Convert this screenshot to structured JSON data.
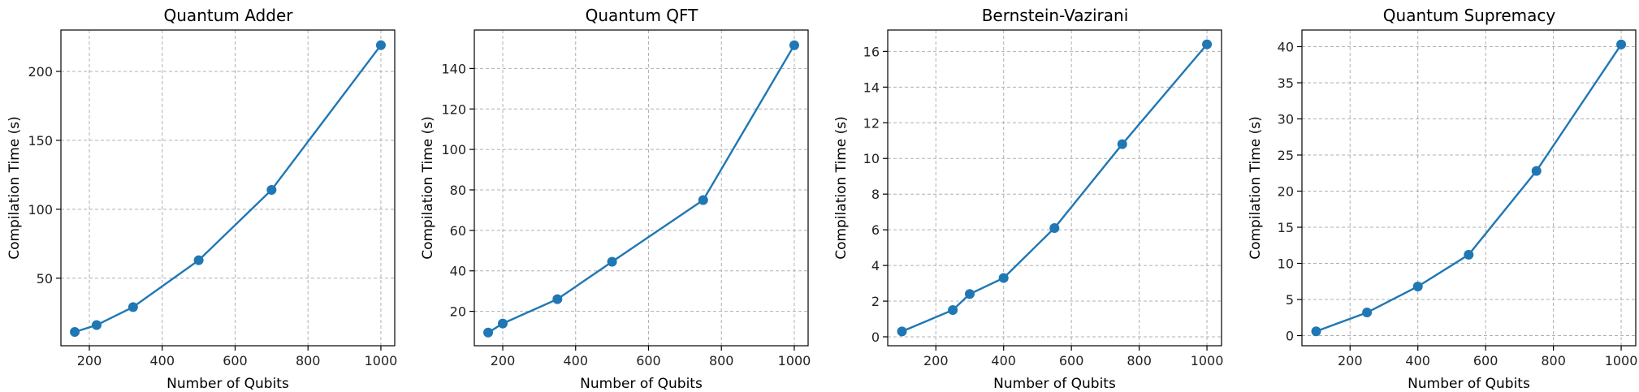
{
  "colors": {
    "series": "#1f77b4"
  },
  "chart_data": [
    {
      "type": "line",
      "title": "Quantum Adder",
      "xlabel": "Number of Qubits",
      "ylabel": "Compilation Time (s)",
      "x": [
        160,
        220,
        320,
        500,
        700,
        1000
      ],
      "series": [
        {
          "values": [
            11,
            16,
            29,
            63,
            114,
            219
          ]
        }
      ],
      "xlim": [
        122,
        1038
      ],
      "ylim": [
        1,
        230
      ],
      "xticks": [
        200,
        400,
        600,
        800,
        1000
      ],
      "yticks": [
        50,
        100,
        150,
        200
      ],
      "grid": true
    },
    {
      "type": "line",
      "title": "Quantum QFT",
      "xlabel": "Number of Qubits",
      "ylabel": "Compilation Time (s)",
      "x": [
        160,
        200,
        350,
        500,
        750,
        1000
      ],
      "series": [
        {
          "values": [
            9.5,
            14,
            26,
            44.5,
            75,
            151.5
          ]
        }
      ],
      "xlim": [
        122,
        1038
      ],
      "ylim": [
        3,
        159
      ],
      "xticks": [
        200,
        400,
        600,
        800,
        1000
      ],
      "yticks": [
        20,
        40,
        60,
        80,
        100,
        120,
        140
      ],
      "grid": true
    },
    {
      "type": "line",
      "title": "Bernstein-Vazirani",
      "xlabel": "Number of Qubits",
      "ylabel": "Compilation Time (s)",
      "x": [
        100,
        250,
        300,
        400,
        550,
        750,
        1000
      ],
      "series": [
        {
          "values": [
            0.3,
            1.5,
            2.4,
            3.3,
            6.1,
            10.8,
            16.4
          ]
        }
      ],
      "xlim": [
        58,
        1043
      ],
      "ylim": [
        -0.5,
        17.2
      ],
      "xticks": [
        200,
        400,
        600,
        800,
        1000
      ],
      "yticks": [
        0,
        2,
        4,
        6,
        8,
        10,
        12,
        14,
        16
      ],
      "grid": true
    },
    {
      "type": "line",
      "title": "Quantum Supremacy",
      "xlabel": "Number of Qubits",
      "ylabel": "Compilation Time (s)",
      "x": [
        100,
        250,
        400,
        550,
        750,
        1000
      ],
      "series": [
        {
          "values": [
            0.6,
            3.2,
            6.8,
            11.2,
            22.8,
            40.3
          ]
        }
      ],
      "xlim": [
        58,
        1043
      ],
      "ylim": [
        -1.4,
        42.3
      ],
      "xticks": [
        200,
        400,
        600,
        800,
        1000
      ],
      "yticks": [
        0,
        5,
        10,
        15,
        20,
        25,
        30,
        35,
        40
      ],
      "grid": true
    }
  ]
}
